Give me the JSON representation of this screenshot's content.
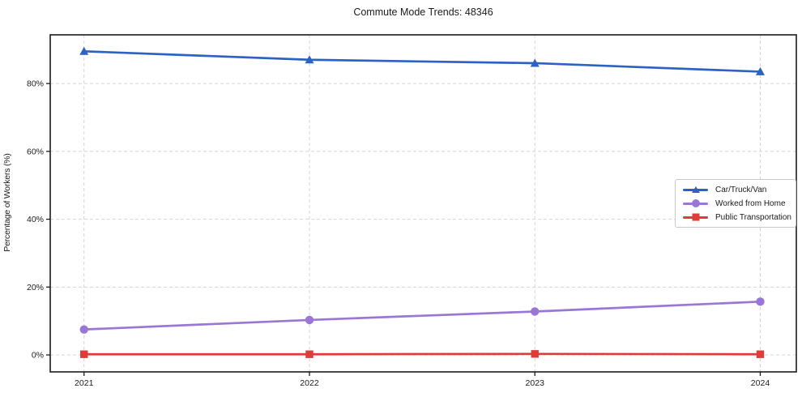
{
  "chart_data": {
    "type": "line",
    "title": "Commute Mode Trends: 48346",
    "xlabel": "",
    "ylabel": "Percentage of Workers (%)",
    "categories": [
      2021,
      2022,
      2023,
      2024
    ],
    "x_tick_labels": [
      "2021",
      "2022",
      "2023",
      "2024"
    ],
    "y_ticks": [
      0,
      20,
      40,
      60,
      80
    ],
    "y_tick_labels": [
      "0%",
      "20%",
      "40%",
      "60%",
      "80%"
    ],
    "xlim": [
      2020.85,
      2024.16
    ],
    "ylim": [
      -5,
      94.35
    ],
    "grid": "dashed both axes",
    "legend_position": "center-right inside plot",
    "series": [
      {
        "name": "Car/Truck/Van",
        "color": "#2d62c4",
        "marker": "triangle",
        "values": [
          89.5,
          87.0,
          86.0,
          83.5
        ]
      },
      {
        "name": "Worked from Home",
        "color": "#9a77d6",
        "marker": "circle",
        "values": [
          7.5,
          10.3,
          12.8,
          15.7
        ]
      },
      {
        "name": "Public Transportation",
        "color": "#e03b3b",
        "marker": "square",
        "values": [
          0.2,
          0.2,
          0.3,
          0.2
        ]
      }
    ],
    "colors": {
      "axis": "#1a1a1a",
      "gridline": "#d4d4d4",
      "background": "#ffffff",
      "tick_text": "#1a1a1a"
    }
  }
}
